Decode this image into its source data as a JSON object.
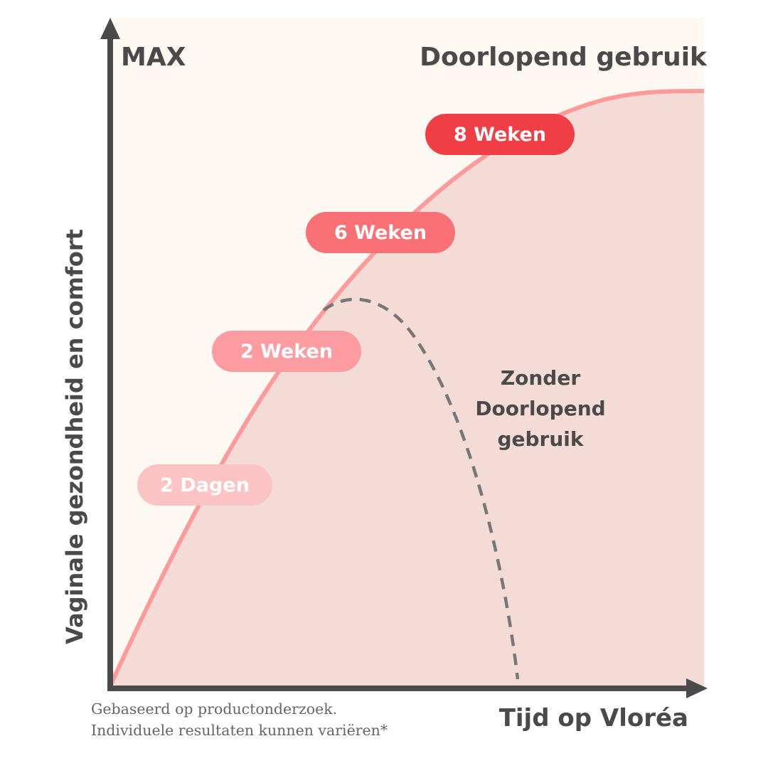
{
  "chart_data": {
    "type": "area",
    "ylabel": "Vaginale gezondheid en comfort",
    "xlabel": "Tijd op Vloréa",
    "y_top_label": "MAX",
    "series": [
      {
        "name": "Doorlopend gebruik",
        "style": "solid-filled",
        "color": "#ff9a9a",
        "fill": "#f5dbd6"
      },
      {
        "name": "Zonder Doorlopend gebruik",
        "style": "dashed",
        "color": "#777777"
      }
    ],
    "milestones": [
      {
        "label": "2 Dagen",
        "color": "#fcc3c5"
      },
      {
        "label": "2 Weken",
        "color": "#fd9ca0"
      },
      {
        "label": "6 Weken",
        "color": "#f97176"
      },
      {
        "label": "8 Weken",
        "color": "#f03e44"
      }
    ],
    "footnote": [
      "Gebaseerd op productonderzoek.",
      "Individuele resultaten kunnen variëren*"
    ],
    "grid": false,
    "background": "#fdf8f2"
  }
}
